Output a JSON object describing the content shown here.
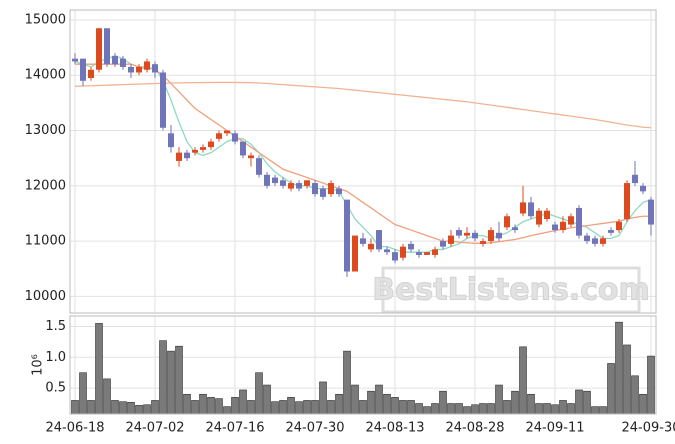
{
  "chart_data": [
    {
      "type": "candlestick",
      "categories": [
        "24-06-18",
        null,
        null,
        null,
        null,
        null,
        null,
        null,
        null,
        null,
        "24-07-02",
        null,
        null,
        null,
        null,
        null,
        null,
        null,
        null,
        null,
        "24-07-16",
        null,
        null,
        null,
        null,
        null,
        null,
        null,
        null,
        null,
        "24-07-30",
        null,
        null,
        null,
        null,
        null,
        null,
        null,
        null,
        null,
        "24-08-13",
        null,
        null,
        null,
        null,
        null,
        null,
        null,
        null,
        null,
        "24-08-28",
        null,
        null,
        null,
        null,
        null,
        null,
        null,
        null,
        null,
        "24-09-11",
        null,
        null,
        null,
        null,
        null,
        null,
        null,
        null,
        null,
        null,
        null,
        "24-09-30"
      ],
      "open": [
        14300,
        14300,
        13950,
        14100,
        14850,
        14350,
        14300,
        14150,
        14050,
        14100,
        14200,
        14050,
        12950,
        12450,
        12600,
        12600,
        12650,
        12700,
        12850,
        12950,
        12950,
        12800,
        12500,
        12500,
        12200,
        12150,
        12100,
        11950,
        12050,
        12000,
        12050,
        11950,
        11850,
        11950,
        11750,
        10450,
        11050,
        10850,
        11200,
        10850,
        10800,
        10700,
        10950,
        10800,
        10750,
        10750,
        11000,
        10950,
        11200,
        11100,
        11150,
        10950,
        11000,
        11150,
        11250,
        11250,
        11500,
        11700,
        11300,
        11400,
        11300,
        11200,
        11300,
        11600,
        11100,
        11050,
        10950,
        11200,
        11200,
        11400,
        12200,
        12000,
        11750
      ],
      "high": [
        14400,
        14300,
        14150,
        14850,
        14850,
        14400,
        14350,
        14200,
        14200,
        14300,
        14250,
        14100,
        13100,
        12700,
        12650,
        12700,
        12750,
        12850,
        13000,
        13000,
        13000,
        12800,
        12600,
        12550,
        12250,
        12200,
        12150,
        12100,
        12100,
        12100,
        12100,
        12000,
        12100,
        12000,
        11750,
        11100,
        11150,
        11050,
        11200,
        10900,
        10850,
        10950,
        11000,
        10850,
        10800,
        10900,
        11050,
        11200,
        11250,
        11250,
        11200,
        11050,
        11250,
        11350,
        11500,
        11300,
        12000,
        11800,
        11600,
        11600,
        11350,
        11450,
        11500,
        11650,
        11150,
        11100,
        11100,
        11250,
        11400,
        12100,
        12450,
        12050,
        11800
      ],
      "low": [
        14200,
        13800,
        13900,
        14050,
        14150,
        14150,
        14100,
        13950,
        14000,
        14050,
        13950,
        13000,
        12600,
        12350,
        12450,
        12550,
        12600,
        12650,
        12800,
        12900,
        12750,
        12500,
        12350,
        12150,
        11950,
        12000,
        11950,
        11900,
        11900,
        11950,
        11800,
        11750,
        11800,
        11800,
        10350,
        10450,
        10900,
        10800,
        10800,
        10750,
        10600,
        10650,
        10800,
        10700,
        10750,
        10700,
        10850,
        10900,
        11050,
        11050,
        11000,
        10900,
        10950,
        11000,
        11200,
        11150,
        11450,
        11400,
        11250,
        11350,
        11150,
        11150,
        11250,
        11050,
        10950,
        10900,
        10900,
        11100,
        11150,
        11350,
        12000,
        11850,
        11100
      ],
      "close": [
        14250,
        13900,
        14100,
        14850,
        14200,
        14200,
        14150,
        14050,
        14150,
        14250,
        14050,
        13050,
        12700,
        12600,
        12500,
        12650,
        12700,
        12800,
        12950,
        13000,
        12800,
        12550,
        12550,
        12200,
        12000,
        12050,
        12000,
        12050,
        11950,
        12100,
        11850,
        11800,
        12050,
        11850,
        10450,
        11100,
        10950,
        10950,
        10850,
        10800,
        10650,
        10900,
        10850,
        10750,
        10800,
        10850,
        10900,
        11100,
        11100,
        11150,
        11050,
        11000,
        11200,
        11050,
        11450,
        11200,
        11700,
        11450,
        11550,
        11550,
        11200,
        11350,
        11450,
        11100,
        11000,
        10950,
        11050,
        11150,
        11350,
        12050,
        12050,
        11900,
        11300
      ],
      "up_color": "#dc4a1f",
      "down_color": "#7074b9",
      "series": [
        {
          "color": "#8fd9c2",
          "values": [
            14250,
            14200,
            14150,
            14250,
            14300,
            14350,
            14300,
            14200,
            14150,
            14100,
            14150,
            13900,
            13550,
            13150,
            12800,
            12600,
            12550,
            12600,
            12700,
            12800,
            12850,
            12850,
            12750,
            12600,
            12400,
            12250,
            12150,
            12050,
            12000,
            12000,
            11950,
            11950,
            11950,
            11900,
            11650,
            11400,
            11250,
            11100,
            10900,
            10900,
            10850,
            10800,
            10800,
            10800,
            10800,
            10850,
            10850,
            10900,
            10950,
            11050,
            11100,
            11100,
            11050,
            11100,
            11150,
            11250,
            11350,
            11400,
            11450,
            11500,
            11450,
            11400,
            11350,
            11300,
            11250,
            11150,
            11050,
            11050,
            11100,
            11350,
            11550,
            11700,
            11750
          ]
        },
        {
          "color": "#f0a07c",
          "values": [
            14200,
            14200,
            14200,
            14200,
            14200,
            14200,
            14200,
            14200,
            14150,
            14150,
            14100,
            14000,
            13850,
            13700,
            13550,
            13400,
            13300,
            13200,
            13100,
            13000,
            12900,
            12800,
            12700,
            12600,
            12500,
            12400,
            12300,
            12250,
            12200,
            12150,
            12100,
            12050,
            12000,
            11950,
            11900,
            11800,
            11700,
            11600,
            11500,
            11400,
            11300,
            11250,
            11200,
            11150,
            11100,
            11050,
            11000,
            11000,
            10980,
            10970,
            10960,
            10960,
            10970,
            10990,
            11010,
            11030,
            11060,
            11100,
            11130,
            11160,
            11190,
            11220,
            11240,
            11260,
            11280,
            11300,
            11320,
            11340,
            11360,
            11400,
            11430,
            11450,
            11450
          ]
        },
        {
          "color": "#f2b392",
          "values": [
            13800,
            13805,
            13810,
            13815,
            13820,
            13825,
            13830,
            13835,
            13840,
            13845,
            13850,
            13855,
            13860,
            13862,
            13864,
            13866,
            13868,
            13870,
            13870,
            13870,
            13870,
            13868,
            13865,
            13860,
            13850,
            13840,
            13830,
            13820,
            13810,
            13800,
            13790,
            13780,
            13770,
            13760,
            13745,
            13730,
            13715,
            13700,
            13685,
            13670,
            13655,
            13640,
            13625,
            13610,
            13595,
            13580,
            13565,
            13550,
            13535,
            13520,
            13500,
            13480,
            13460,
            13440,
            13420,
            13400,
            13380,
            13360,
            13340,
            13320,
            13300,
            13280,
            13260,
            13240,
            13220,
            13200,
            13175,
            13150,
            13125,
            13100,
            13080,
            13060,
            13050
          ]
        }
      ],
      "ylim": [
        9700,
        15180
      ],
      "yticks": [
        10000,
        11000,
        12000,
        13000,
        14000,
        15000
      ],
      "grid": true,
      "watermark": "BestListens.com"
    },
    {
      "type": "bar",
      "ylabel": "10⁶",
      "color": "#7a7a7a",
      "values": [
        0.3,
        0.75,
        0.3,
        1.55,
        0.65,
        0.3,
        0.28,
        0.27,
        0.22,
        0.23,
        0.3,
        1.27,
        1.1,
        1.18,
        0.4,
        0.3,
        0.4,
        0.35,
        0.33,
        0.2,
        0.35,
        0.47,
        0.3,
        0.75,
        0.55,
        0.28,
        0.3,
        0.35,
        0.28,
        0.3,
        0.3,
        0.6,
        0.3,
        0.4,
        1.1,
        0.55,
        0.3,
        0.45,
        0.55,
        0.4,
        0.35,
        0.3,
        0.3,
        0.25,
        0.2,
        0.25,
        0.45,
        0.25,
        0.25,
        0.2,
        0.23,
        0.25,
        0.25,
        0.55,
        0.3,
        0.45,
        1.17,
        0.4,
        0.25,
        0.25,
        0.23,
        0.3,
        0.25,
        0.47,
        0.45,
        0.2,
        0.2,
        0.9,
        1.57,
        1.2,
        0.7,
        0.4,
        1.02
      ],
      "ylim": [
        0.08,
        1.67
      ],
      "yticks": [
        0.5,
        {
          "value": 1,
          "label": "1.0"
        },
        1.5
      ],
      "grid": true
    }
  ]
}
